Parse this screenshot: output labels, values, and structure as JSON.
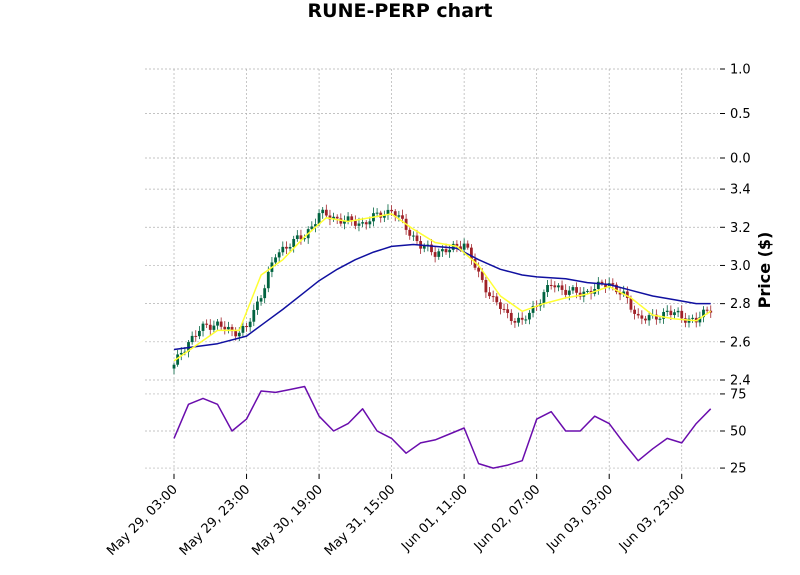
{
  "chart_data": {
    "type": "candlestick",
    "title": "RUNE-PERP chart",
    "ylabel": "Price ($)",
    "colors": {
      "up": "#006340",
      "down": "#a02128",
      "ma_fast": "#ffff33",
      "ma_slow": "#1010a0",
      "indicator": "#6a0dad"
    },
    "grid": true,
    "x_tick_labels": [
      "May 29, 03:00",
      "May 29, 23:00",
      "May 30, 19:00",
      "May 31, 15:00",
      "Jun 01, 11:00",
      "Jun 02, 07:00",
      "Jun 03, 03:00",
      "Jun 03, 23:00"
    ],
    "x_tick_hours": [
      0,
      20,
      40,
      60,
      80,
      100,
      120,
      140
    ],
    "x_range_hours": [
      -8,
      150
    ],
    "price_panel": {
      "ylim": [
        2.4,
        3.5
      ],
      "yticks": [
        "2.4",
        "2.6",
        "2.8",
        "3.0",
        "3.2",
        "3.4"
      ],
      "ytick_values": [
        2.4,
        2.6,
        2.8,
        3.0,
        3.2,
        3.4
      ]
    },
    "empty_panel": {
      "ylim": [
        0.0,
        1.0
      ],
      "yticks": [
        "0.0",
        "0.5",
        "1.0"
      ],
      "ytick_values": [
        0.0,
        0.5,
        1.0
      ]
    },
    "indicator_panel": {
      "ylim": [
        21,
        79
      ],
      "yticks": [
        "25",
        "50",
        "75"
      ],
      "ytick_values": [
        25,
        50,
        75
      ]
    },
    "close_anchor_hours": [
      0,
      2,
      5,
      9,
      12,
      16,
      20,
      23,
      28,
      32,
      36,
      40,
      44,
      48,
      52,
      56,
      60,
      64,
      68,
      72,
      76,
      80,
      84,
      88,
      92,
      96,
      100,
      104,
      108,
      112,
      116,
      120,
      124,
      128,
      132,
      136,
      140,
      144,
      148
    ],
    "close_anchor_values": [
      2.47,
      2.55,
      2.62,
      2.69,
      2.69,
      2.65,
      2.67,
      2.8,
      3.05,
      3.12,
      3.15,
      3.27,
      3.25,
      3.23,
      3.22,
      3.26,
      3.29,
      3.2,
      3.1,
      3.07,
      3.08,
      3.12,
      2.95,
      2.82,
      2.74,
      2.7,
      2.8,
      2.9,
      2.87,
      2.85,
      2.88,
      2.91,
      2.84,
      2.73,
      2.72,
      2.76,
      2.73,
      2.71,
      2.78
    ],
    "ma_fast_hours": [
      0,
      6,
      12,
      18,
      24,
      30,
      36,
      42,
      48,
      54,
      60,
      66,
      72,
      78,
      84,
      90,
      96,
      102,
      108,
      114,
      120,
      126,
      132,
      138,
      144,
      148
    ],
    "ma_fast_values": [
      2.5,
      2.58,
      2.66,
      2.66,
      2.95,
      3.03,
      3.15,
      3.25,
      3.23,
      3.25,
      3.27,
      3.19,
      3.12,
      3.1,
      3.0,
      2.84,
      2.76,
      2.8,
      2.83,
      2.85,
      2.89,
      2.83,
      2.74,
      2.72,
      2.71,
      2.76
    ],
    "ma_slow_hours": [
      0,
      12,
      20,
      25,
      30,
      36,
      40,
      45,
      50,
      55,
      60,
      66,
      72,
      78,
      84,
      90,
      96,
      100,
      108,
      114,
      120,
      126,
      132,
      138,
      144,
      148
    ],
    "ma_slow_values": [
      2.56,
      2.59,
      2.63,
      2.7,
      2.77,
      2.86,
      2.92,
      2.98,
      3.03,
      3.07,
      3.1,
      3.11,
      3.1,
      3.09,
      3.03,
      2.98,
      2.95,
      2.94,
      2.93,
      2.91,
      2.9,
      2.87,
      2.84,
      2.82,
      2.8,
      2.8
    ],
    "indicator_hours": [
      0,
      4,
      8,
      12,
      16,
      20,
      24,
      28,
      32,
      36,
      40,
      44,
      48,
      52,
      56,
      60,
      64,
      68,
      72,
      76,
      80,
      84,
      88,
      92,
      96,
      100,
      104,
      108,
      112,
      116,
      120,
      124,
      128,
      132,
      136,
      140,
      144,
      148
    ],
    "indicator_values": [
      45,
      68,
      72,
      68,
      50,
      58,
      77,
      76,
      78,
      80,
      60,
      50,
      55,
      65,
      50,
      45,
      35,
      42,
      44,
      48,
      52,
      28,
      25,
      27,
      30,
      58,
      63,
      50,
      50,
      60,
      55,
      42,
      30,
      38,
      45,
      42,
      55,
      65
    ]
  }
}
